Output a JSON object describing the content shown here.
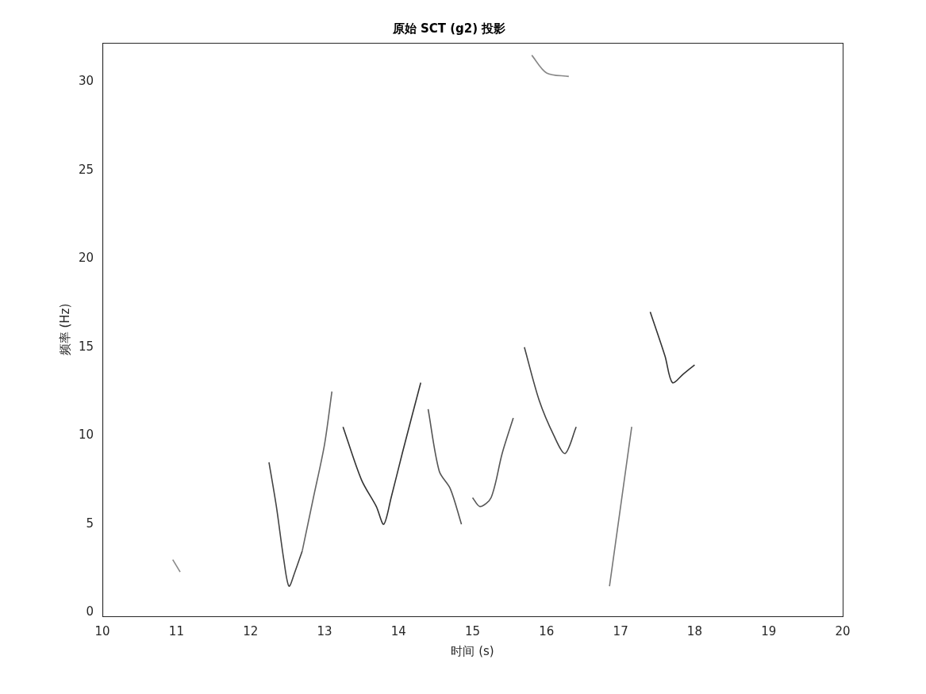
{
  "chart_data": {
    "type": "line",
    "title": "原始 SCT (g2) 投影",
    "x_label": "时间 (s)",
    "y_label": "频率 (Hz)",
    "xlim": [
      10,
      20
    ],
    "xticks": [
      10,
      11,
      12,
      13,
      14,
      15,
      16,
      17,
      18,
      19,
      20
    ],
    "ylim": [
      -0.2,
      32.2
    ],
    "yticks": [
      0,
      5,
      10,
      15,
      20,
      25,
      30
    ],
    "grid": false,
    "line_style": "solid",
    "series": [
      {
        "color": "#444444",
        "x": [
          12.25,
          12.35,
          12.45,
          12.52,
          12.6,
          12.7
        ],
        "values": [
          8.5,
          6,
          3,
          1.5,
          2.3,
          3.5
        ]
      },
      {
        "color": "#666666",
        "x": [
          12.7,
          12.85,
          13.0,
          13.1
        ],
        "values": [
          3.5,
          6.5,
          9.5,
          12.5
        ]
      },
      {
        "color": "#333333",
        "x": [
          13.25,
          13.5,
          13.7,
          13.8,
          13.9,
          14.05,
          14.3
        ],
        "values": [
          10.5,
          7.5,
          6,
          5,
          6.5,
          9,
          13
        ]
      },
      {
        "color": "#555555",
        "x": [
          14.4,
          14.55,
          14.7,
          14.85
        ],
        "values": [
          11.5,
          8,
          7,
          5
        ]
      },
      {
        "color": "#555555",
        "x": [
          15.0,
          15.1,
          15.25,
          15.4,
          15.55
        ],
        "values": [
          6.5,
          6,
          6.5,
          9,
          11
        ]
      },
      {
        "color": "#444444",
        "x": [
          15.7,
          15.9,
          16.1,
          16.25,
          16.4
        ],
        "values": [
          15,
          12,
          10,
          9,
          10.5
        ]
      },
      {
        "color": "#777777",
        "x": [
          16.85,
          17.0,
          17.15
        ],
        "values": [
          1.5,
          6,
          10.5
        ]
      },
      {
        "color": "#333333",
        "x": [
          17.4,
          17.6,
          17.7,
          17.85,
          18.0
        ],
        "values": [
          17,
          14.5,
          13,
          13.5,
          14
        ]
      },
      {
        "color": "#888888",
        "x": [
          10.95,
          11.05
        ],
        "values": [
          3,
          2.3
        ]
      },
      {
        "color": "#888888",
        "x": [
          15.8,
          16.0,
          16.3
        ],
        "values": [
          31.5,
          30.5,
          30.3
        ]
      }
    ]
  }
}
